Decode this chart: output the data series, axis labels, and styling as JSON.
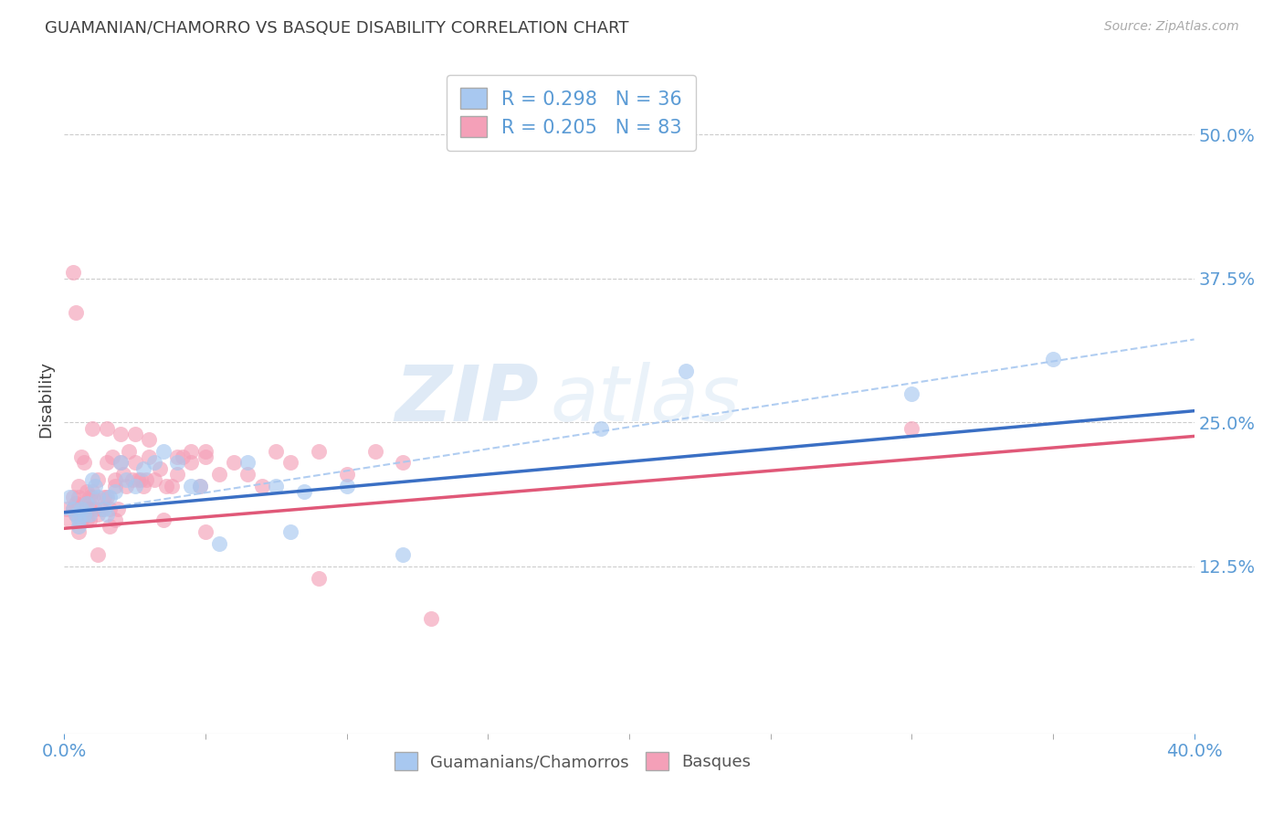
{
  "title": "GUAMANIAN/CHAMORRO VS BASQUE DISABILITY CORRELATION CHART",
  "source": "Source: ZipAtlas.com",
  "ylabel": "Disability",
  "xlim": [
    0.0,
    0.4
  ],
  "ylim": [
    -0.02,
    0.56
  ],
  "xticks": [
    0.0,
    0.4
  ],
  "xticklabels": [
    "0.0%",
    "40.0%"
  ],
  "yticks_right": [
    0.125,
    0.25,
    0.375,
    0.5
  ],
  "yticklabels_right": [
    "12.5%",
    "25.0%",
    "37.5%",
    "50.0%"
  ],
  "legend_r1": "R = 0.298",
  "legend_n1": "N = 36",
  "legend_r2": "R = 0.205",
  "legend_n2": "N = 83",
  "blue_scatter_color": "#a8c8f0",
  "pink_scatter_color": "#f4a0b8",
  "blue_line_color": "#3a6fc4",
  "pink_line_color": "#e05878",
  "blue_dash_color": "#a8c8f0",
  "watermark": "ZIPatlas",
  "background_color": "#ffffff",
  "grid_color": "#cccccc",
  "title_color": "#404040",
  "axis_label_color": "#5b9bd5",
  "guamanians_x": [
    0.002,
    0.003,
    0.004,
    0.005,
    0.005,
    0.006,
    0.007,
    0.008,
    0.009,
    0.01,
    0.011,
    0.012,
    0.014,
    0.015,
    0.016,
    0.018,
    0.02,
    0.022,
    0.025,
    0.028,
    0.032,
    0.035,
    0.04,
    0.045,
    0.048,
    0.055,
    0.065,
    0.075,
    0.08,
    0.085,
    0.1,
    0.12,
    0.19,
    0.22,
    0.3,
    0.35
  ],
  "guamanians_y": [
    0.185,
    0.175,
    0.17,
    0.165,
    0.16,
    0.175,
    0.17,
    0.18,
    0.17,
    0.2,
    0.195,
    0.185,
    0.175,
    0.17,
    0.185,
    0.19,
    0.215,
    0.2,
    0.195,
    0.21,
    0.215,
    0.225,
    0.215,
    0.195,
    0.195,
    0.145,
    0.215,
    0.195,
    0.155,
    0.19,
    0.195,
    0.135,
    0.245,
    0.295,
    0.275,
    0.305
  ],
  "basques_x": [
    0.001,
    0.002,
    0.003,
    0.003,
    0.004,
    0.004,
    0.005,
    0.005,
    0.006,
    0.006,
    0.007,
    0.007,
    0.008,
    0.008,
    0.009,
    0.009,
    0.01,
    0.01,
    0.011,
    0.012,
    0.012,
    0.013,
    0.014,
    0.015,
    0.015,
    0.016,
    0.017,
    0.018,
    0.018,
    0.019,
    0.02,
    0.021,
    0.022,
    0.023,
    0.024,
    0.025,
    0.026,
    0.027,
    0.028,
    0.029,
    0.03,
    0.032,
    0.034,
    0.036,
    0.038,
    0.04,
    0.042,
    0.045,
    0.048,
    0.05,
    0.055,
    0.06,
    0.065,
    0.07,
    0.075,
    0.08,
    0.09,
    0.1,
    0.11,
    0.12,
    0.01,
    0.015,
    0.02,
    0.025,
    0.03,
    0.035,
    0.04,
    0.045,
    0.05,
    0.006,
    0.007,
    0.008,
    0.009,
    0.012,
    0.016,
    0.018,
    0.005,
    0.003,
    0.004,
    0.3,
    0.05,
    0.09,
    0.13
  ],
  "basques_y": [
    0.175,
    0.165,
    0.185,
    0.175,
    0.17,
    0.18,
    0.195,
    0.185,
    0.165,
    0.175,
    0.18,
    0.17,
    0.165,
    0.175,
    0.165,
    0.185,
    0.19,
    0.185,
    0.175,
    0.2,
    0.17,
    0.175,
    0.185,
    0.215,
    0.185,
    0.175,
    0.22,
    0.2,
    0.195,
    0.175,
    0.215,
    0.205,
    0.195,
    0.225,
    0.2,
    0.215,
    0.2,
    0.2,
    0.195,
    0.2,
    0.22,
    0.2,
    0.21,
    0.195,
    0.195,
    0.205,
    0.22,
    0.215,
    0.195,
    0.22,
    0.205,
    0.215,
    0.205,
    0.195,
    0.225,
    0.215,
    0.225,
    0.205,
    0.225,
    0.215,
    0.245,
    0.245,
    0.24,
    0.24,
    0.235,
    0.165,
    0.22,
    0.225,
    0.225,
    0.22,
    0.215,
    0.19,
    0.175,
    0.135,
    0.16,
    0.165,
    0.155,
    0.38,
    0.345,
    0.245,
    0.155,
    0.115,
    0.08
  ]
}
